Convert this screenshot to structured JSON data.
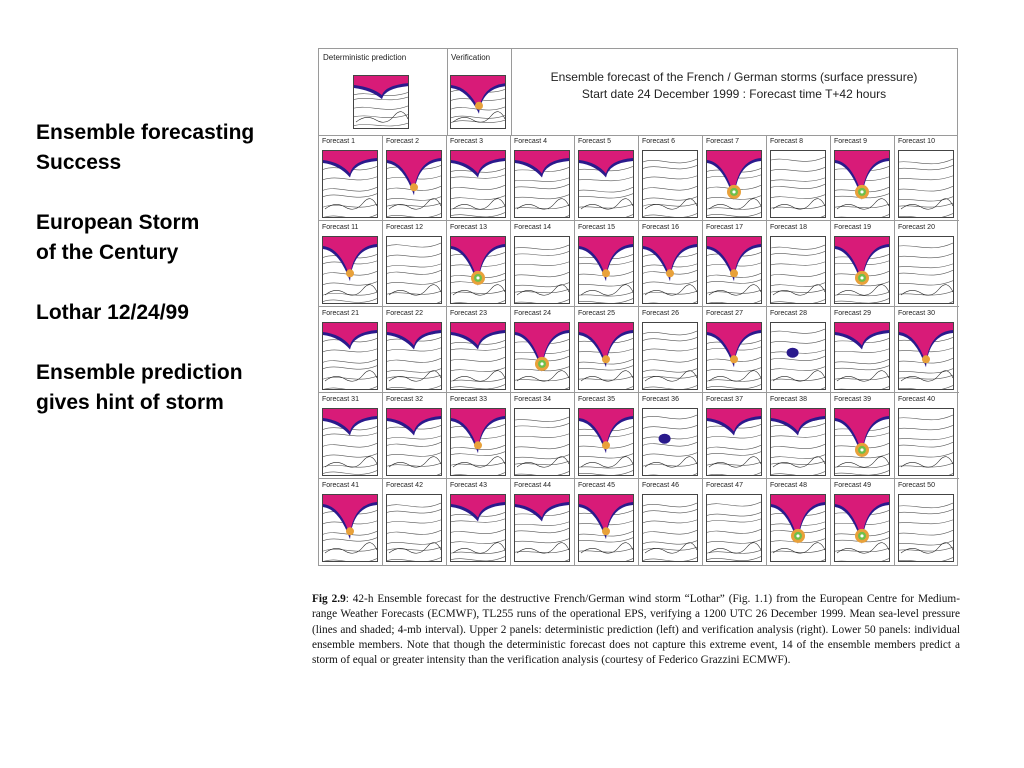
{
  "slide": {
    "notes": [
      [
        "Ensemble forecasting",
        "Success"
      ],
      [
        "European Storm",
        "of the Century"
      ],
      [
        "Lothar 12/24/99"
      ],
      [
        "Ensemble prediction",
        "gives hint of storm"
      ]
    ]
  },
  "figure": {
    "deterministic_label": "Deterministic prediction",
    "verification_label": "Verification",
    "title_line1": "Ensemble forecast of the French / German storms (surface pressure)",
    "title_line2": "Start date 24 December 1999 : Forecast time T+42 hours",
    "panels": [
      {
        "label": "Forecast  1",
        "storm": "weak"
      },
      {
        "label": "Forecast  2",
        "storm": "medium"
      },
      {
        "label": "Forecast  3",
        "storm": "weak"
      },
      {
        "label": "Forecast  4",
        "storm": "weak"
      },
      {
        "label": "Forecast  5",
        "storm": "weak"
      },
      {
        "label": "Forecast  6",
        "storm": "none"
      },
      {
        "label": "Forecast  7",
        "storm": "strong"
      },
      {
        "label": "Forecast  8",
        "storm": "none"
      },
      {
        "label": "Forecast  9",
        "storm": "strong"
      },
      {
        "label": "Forecast 10",
        "storm": "none"
      },
      {
        "label": "Forecast 11",
        "storm": "medium"
      },
      {
        "label": "Forecast 12",
        "storm": "none"
      },
      {
        "label": "Forecast 13",
        "storm": "strong"
      },
      {
        "label": "Forecast 14",
        "storm": "none"
      },
      {
        "label": "Forecast 15",
        "storm": "medium"
      },
      {
        "label": "Forecast 16",
        "storm": "medium"
      },
      {
        "label": "Forecast 17",
        "storm": "medium"
      },
      {
        "label": "Forecast 18",
        "storm": "none"
      },
      {
        "label": "Forecast 19",
        "storm": "strong"
      },
      {
        "label": "Forecast 20",
        "storm": "none"
      },
      {
        "label": "Forecast 21",
        "storm": "weak"
      },
      {
        "label": "Forecast 22",
        "storm": "weak"
      },
      {
        "label": "Forecast 23",
        "storm": "weak"
      },
      {
        "label": "Forecast 24",
        "storm": "strong"
      },
      {
        "label": "Forecast 25",
        "storm": "medium"
      },
      {
        "label": "Forecast 26",
        "storm": "none"
      },
      {
        "label": "Forecast 27",
        "storm": "medium"
      },
      {
        "label": "Forecast 28",
        "storm": "blob"
      },
      {
        "label": "Forecast 29",
        "storm": "weak"
      },
      {
        "label": "Forecast 30",
        "storm": "medium"
      },
      {
        "label": "Forecast 31",
        "storm": "weak"
      },
      {
        "label": "Forecast 32",
        "storm": "weak"
      },
      {
        "label": "Forecast 33",
        "storm": "medium"
      },
      {
        "label": "Forecast 34",
        "storm": "none"
      },
      {
        "label": "Forecast 35",
        "storm": "medium"
      },
      {
        "label": "Forecast 36",
        "storm": "blob"
      },
      {
        "label": "Forecast 37",
        "storm": "weak"
      },
      {
        "label": "Forecast 38",
        "storm": "weak"
      },
      {
        "label": "Forecast 39",
        "storm": "strong"
      },
      {
        "label": "Forecast 40",
        "storm": "none"
      },
      {
        "label": "Forecast 41",
        "storm": "medium"
      },
      {
        "label": "Forecast 42",
        "storm": "none"
      },
      {
        "label": "Forecast 43",
        "storm": "weak"
      },
      {
        "label": "Forecast 44",
        "storm": "weak"
      },
      {
        "label": "Forecast 45",
        "storm": "medium"
      },
      {
        "label": "Forecast 46",
        "storm": "none"
      },
      {
        "label": "Forecast 47",
        "storm": "none"
      },
      {
        "label": "Forecast 48",
        "storm": "strong"
      },
      {
        "label": "Forecast 49",
        "storm": "strong"
      },
      {
        "label": "Forecast 50",
        "storm": "none"
      }
    ],
    "colors": {
      "pressure_low": "#d81b78",
      "pressure_edge": "#2a1a8c",
      "pressure_core": "#e8a13a",
      "pressure_eye": "#6fbf4a",
      "isobar": "#555555"
    }
  },
  "caption": {
    "fig_label": "Fig 2.9",
    "text": ": 42-h Ensemble forecast for the destructive French/German wind storm “Lothar” (Fig. 1.1) from the European Centre for Medium-range Weather Forecasts (ECMWF), TL255 runs of the operational EPS, verifying a 1200 UTC 26 December 1999. Mean sea-level pressure (lines and shaded; 4-mb interval). Upper 2 panels: deterministic prediction (left) and verification analysis (right). Lower 50 panels: individual ensemble members. Note that though the deterministic forecast does not capture this extreme event, 14 of the ensemble members predict a storm of equal or greater intensity than the verification analysis (courtesy of Federico Grazzini ECMWF)."
  }
}
